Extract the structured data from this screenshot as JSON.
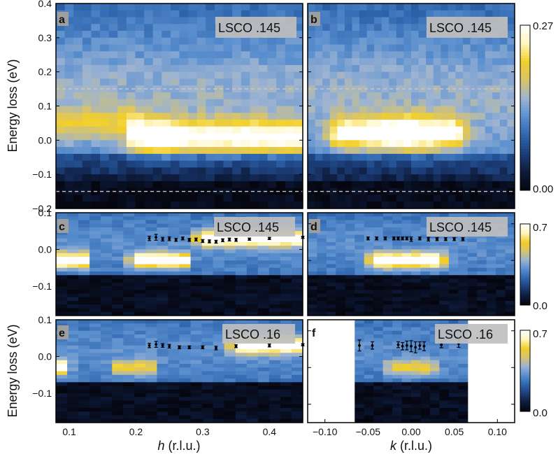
{
  "colors": {
    "colormap": [
      "#05060f",
      "#0d1a3a",
      "#1c3f7a",
      "#2f66ae",
      "#5a8fcf",
      "#9cb3d2",
      "#d8c46a",
      "#f2cf2a",
      "#fff6bf",
      "#ffffff"
    ],
    "dashed": "#c8c8c8"
  },
  "ylabel": "Energy loss (eV)",
  "xlabel_h": {
    "var": "h",
    "unit": " (r.l.u.)"
  },
  "xlabel_k": {
    "var": "k",
    "unit": " (r.l.u.)"
  },
  "chart_data": [
    {
      "type": "heatmap",
      "panel": "a",
      "sample": "LSCO .145",
      "x_variable": "h",
      "xlim": [
        0.08,
        0.45
      ],
      "ylim": [
        -0.2,
        0.4
      ],
      "yticks": [
        "0.4",
        "0.3",
        "0.2",
        "0.1",
        "0.0",
        "−0.1",
        "−0.2"
      ],
      "zlim": [
        0.0,
        0.27
      ],
      "reference_lines_eV": [
        0.15,
        -0.15
      ],
      "features": [
        {
          "name": "low-energy excitation",
          "x_from": 0.2,
          "x_to": 0.45,
          "energy_eV": 0.01,
          "peak_x": 0.24
        },
        {
          "name": "weak dispersive feature",
          "x_from": 0.08,
          "x_to": 0.2,
          "energy_eV": 0.05
        }
      ]
    },
    {
      "type": "heatmap",
      "panel": "b",
      "sample": "LSCO .145",
      "x_variable": "k",
      "xlim": [
        -0.12,
        0.12
      ],
      "ylim": [
        -0.2,
        0.4
      ],
      "zlim": [
        0.0,
        0.27
      ],
      "reference_lines_eV": [
        0.15,
        -0.15
      ],
      "features": [
        {
          "name": "low-energy excitation",
          "x_from": -0.08,
          "x_to": 0.05,
          "energy_eV": 0.02,
          "peak_x": -0.01
        }
      ]
    },
    {
      "type": "heatmap",
      "panel": "c",
      "sample": "LSCO .145",
      "x_variable": "h",
      "xlim": [
        0.08,
        0.45
      ],
      "ylim": [
        -0.15,
        0.13
      ],
      "yticks": [
        "0.1",
        "0.0",
        "−0.1"
      ],
      "zlim": [
        0.0,
        0.7
      ],
      "series": [
        {
          "points": [
            {
              "x": 0.22,
              "y": 0.06,
              "err": 0.006
            },
            {
              "x": 0.23,
              "y": 0.063,
              "err": 0.008
            },
            {
              "x": 0.24,
              "y": 0.058,
              "err": 0.005
            },
            {
              "x": 0.25,
              "y": 0.059,
              "err": 0.005
            },
            {
              "x": 0.26,
              "y": 0.056,
              "err": 0.004
            },
            {
              "x": 0.27,
              "y": 0.06,
              "err": 0.004
            },
            {
              "x": 0.28,
              "y": 0.056,
              "err": 0.004
            },
            {
              "x": 0.29,
              "y": 0.057,
              "err": 0.004
            },
            {
              "x": 0.3,
              "y": 0.053,
              "err": 0.004
            },
            {
              "x": 0.31,
              "y": 0.052,
              "err": 0.004
            },
            {
              "x": 0.32,
              "y": 0.051,
              "err": 0.004
            },
            {
              "x": 0.33,
              "y": 0.055,
              "err": 0.004
            },
            {
              "x": 0.34,
              "y": 0.057,
              "err": 0.004
            },
            {
              "x": 0.35,
              "y": 0.056,
              "err": 0.004
            },
            {
              "x": 0.37,
              "y": 0.058,
              "err": 0.003
            },
            {
              "x": 0.4,
              "y": 0.06,
              "err": 0.003
            },
            {
              "x": 0.45,
              "y": 0.063,
              "err": 0.003
            }
          ]
        }
      ],
      "features": [
        {
          "name": "elastic line",
          "x_from": 0.08,
          "x_to": 0.12,
          "energy_eV": 0.0
        },
        {
          "name": "bright spot",
          "x_from": 0.2,
          "x_to": 0.27,
          "energy_eV": 0.0
        },
        {
          "name": "high intensity branch",
          "x_from": 0.3,
          "x_to": 0.45,
          "energy_eV": 0.06
        }
      ]
    },
    {
      "type": "heatmap",
      "panel": "d",
      "sample": "LSCO .145",
      "x_variable": "k",
      "xlim": [
        -0.12,
        0.12
      ],
      "ylim": [
        -0.15,
        0.13
      ],
      "zlim": [
        0.0,
        0.7
      ],
      "series": [
        {
          "points": [
            {
              "x": -0.05,
              "y": 0.06,
              "err": 0.004
            },
            {
              "x": -0.04,
              "y": 0.06,
              "err": 0.004
            },
            {
              "x": -0.03,
              "y": 0.06,
              "err": 0.004
            },
            {
              "x": -0.02,
              "y": 0.06,
              "err": 0.004
            },
            {
              "x": -0.015,
              "y": 0.06,
              "err": 0.004
            },
            {
              "x": -0.01,
              "y": 0.06,
              "err": 0.004
            },
            {
              "x": -0.005,
              "y": 0.06,
              "err": 0.004
            },
            {
              "x": 0.0,
              "y": 0.058,
              "err": 0.006
            },
            {
              "x": 0.01,
              "y": 0.06,
              "err": 0.004
            },
            {
              "x": 0.02,
              "y": 0.058,
              "err": 0.005
            },
            {
              "x": 0.03,
              "y": 0.058,
              "err": 0.004
            },
            {
              "x": 0.04,
              "y": 0.058,
              "err": 0.004
            },
            {
              "x": 0.05,
              "y": 0.058,
              "err": 0.004
            },
            {
              "x": 0.06,
              "y": 0.058,
              "err": 0.004
            }
          ]
        }
      ],
      "features": [
        {
          "name": "bright spot",
          "x_from": -0.04,
          "x_to": 0.03,
          "energy_eV": 0.0
        }
      ]
    },
    {
      "type": "heatmap",
      "panel": "e",
      "sample": "LSCO .16",
      "x_variable": "h",
      "xlim": [
        0.08,
        0.45
      ],
      "ylim": [
        -0.15,
        0.13
      ],
      "yticks": [
        "0.1",
        "0.0",
        "−0.1"
      ],
      "xticks": [
        "0.1",
        "0.2",
        "0.3",
        "0.4"
      ],
      "zlim": [
        0.0,
        0.7
      ],
      "series": [
        {
          "points": [
            {
              "x": 0.22,
              "y": 0.06,
              "err": 0.006
            },
            {
              "x": 0.23,
              "y": 0.063,
              "err": 0.008
            },
            {
              "x": 0.24,
              "y": 0.06,
              "err": 0.005
            },
            {
              "x": 0.25,
              "y": 0.058,
              "err": 0.005
            },
            {
              "x": 0.265,
              "y": 0.055,
              "err": 0.004
            },
            {
              "x": 0.28,
              "y": 0.055,
              "err": 0.004
            },
            {
              "x": 0.3,
              "y": 0.055,
              "err": 0.004
            },
            {
              "x": 0.32,
              "y": 0.053,
              "err": 0.005
            },
            {
              "x": 0.35,
              "y": 0.058,
              "err": 0.004
            },
            {
              "x": 0.4,
              "y": 0.06,
              "err": 0.004
            },
            {
              "x": 0.45,
              "y": 0.062,
              "err": 0.003
            }
          ]
        }
      ],
      "features": [
        {
          "name": "elastic line",
          "x_from": 0.08,
          "x_to": 0.09,
          "energy_eV": 0.0
        },
        {
          "name": "weak spot",
          "x_from": 0.17,
          "x_to": 0.22,
          "energy_eV": 0.0
        },
        {
          "name": "high intensity branch",
          "x_from": 0.35,
          "x_to": 0.45,
          "energy_eV": 0.06
        }
      ]
    },
    {
      "type": "heatmap",
      "panel": "f",
      "sample": "LSCO .16",
      "x_variable": "k",
      "xlim": [
        -0.12,
        0.12
      ],
      "ylim": [
        -0.15,
        0.13
      ],
      "xticks": [
        "−0.10",
        "−0.05",
        "0.00",
        "0.05",
        "0.10"
      ],
      "measured_range": [
        -0.065,
        0.065
      ],
      "zlim": [
        0.0,
        0.7
      ],
      "series": [
        {
          "points": [
            {
              "x": -0.06,
              "y": 0.06,
              "err": 0.015
            },
            {
              "x": -0.045,
              "y": 0.06,
              "err": 0.01
            },
            {
              "x": -0.015,
              "y": 0.062,
              "err": 0.008
            },
            {
              "x": -0.01,
              "y": 0.058,
              "err": 0.01
            },
            {
              "x": -0.005,
              "y": 0.06,
              "err": 0.012
            },
            {
              "x": 0.0,
              "y": 0.058,
              "err": 0.015
            },
            {
              "x": 0.005,
              "y": 0.055,
              "err": 0.015
            },
            {
              "x": 0.01,
              "y": 0.06,
              "err": 0.01
            },
            {
              "x": 0.015,
              "y": 0.058,
              "err": 0.012
            },
            {
              "x": 0.035,
              "y": 0.062,
              "err": 0.008
            },
            {
              "x": 0.055,
              "y": 0.065,
              "err": 0.01
            }
          ]
        }
      ],
      "features": [
        {
          "name": "weak spot",
          "x_from": -0.02,
          "x_to": 0.02,
          "energy_eV": 0.0
        }
      ]
    }
  ],
  "colorbars": [
    {
      "min_label": "0.00",
      "max_label": "0.27"
    },
    {
      "min_label": "0.0",
      "max_label": "0.7"
    },
    {
      "min_label": "0.0",
      "max_label": "0.7"
    }
  ]
}
